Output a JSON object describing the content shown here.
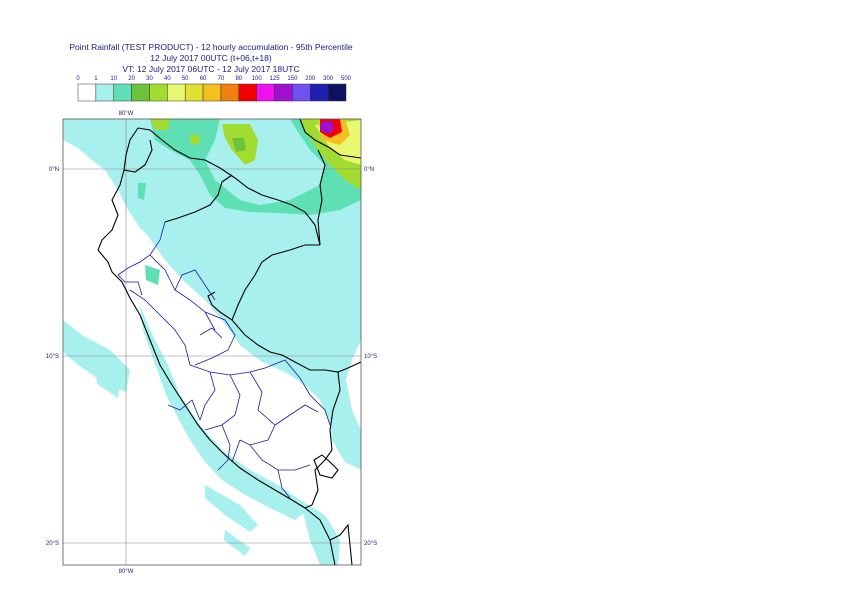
{
  "header": {
    "title_line1": "Point Rainfall (TEST PRODUCT) - 12 hourly accumulation - 95th Percentile",
    "title_line2": "12 July 2017 00UTC (t+06,t+18)",
    "title_line3": "VT: 12 July 2017 06UTC - 12 July 2017 18UTC"
  },
  "legend": {
    "thresholds": [
      "0",
      "1",
      "10",
      "20",
      "30",
      "40",
      "50",
      "60",
      "70",
      "80",
      "100",
      "125",
      "150",
      "200",
      "300",
      "500"
    ],
    "colors": [
      "#ffffff",
      "#a8f0ee",
      "#5fe0b4",
      "#6cc238",
      "#a2dc30",
      "#e8f870",
      "#e0e030",
      "#f4c020",
      "#f08010",
      "#f00000",
      "#f010f0",
      "#a010d0",
      "#7050f0",
      "#2020b0",
      "#101060"
    ]
  },
  "map": {
    "top_lon_label": "80°W",
    "bottom_lon_label": "80°W",
    "lat_labels": [
      {
        "label": "0°N",
        "lat": 0
      },
      {
        "label": "10°S",
        "lat": -10
      },
      {
        "label": "20°S",
        "lat": -20
      }
    ],
    "colors": {
      "background": "#ffffff",
      "light_rain": "#a8f0ee",
      "moderate_rain": "#5fe0b4",
      "heavy": "#a2dc30",
      "country_border": "#000000",
      "region_border": "#1a1aa0",
      "grid": "#888888"
    }
  }
}
